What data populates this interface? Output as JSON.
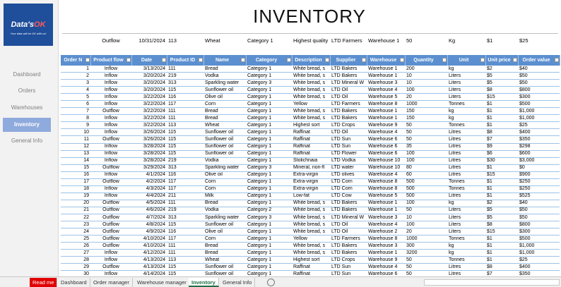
{
  "sidebar": {
    "logo": {
      "title": "Data's",
      "accent": "OK",
      "tagline": "Your data will be OK with us!"
    },
    "nav": [
      "Dashboard",
      "Orders",
      "Warehouses",
      "Inventory",
      "General Info"
    ],
    "selected": 3
  },
  "header": {
    "title": "INVENTORY"
  },
  "entry_row": [
    "Outflow",
    "10/31/2024",
    "113",
    "Wheat",
    "Category 1",
    "Highest quality",
    "LTD Farmers",
    "Warehouse 1",
    "50",
    "Kg",
    "$1",
    "$25"
  ],
  "table": {
    "columns": [
      "Order N",
      "Product flow",
      "Date",
      "Product ID",
      "Name",
      "Category",
      "Description",
      "Supplier",
      "Warehouse",
      "Quantity",
      "Unit",
      "Unit price",
      "Order value"
    ],
    "rows": [
      [
        "1",
        "Inflow",
        "3/13/2024",
        "111",
        "Bread",
        "Category 1",
        "White bread, s",
        "LTD Bakers",
        "Warehouse 1",
        "200",
        "kg",
        "$2",
        "$40"
      ],
      [
        "2",
        "Inflow",
        "3/20/2024",
        "219",
        "Vodka",
        "Category 1",
        "White bread, s",
        "LTD Bakers",
        "Warehouse 1",
        "10",
        "Liters",
        "$5",
        "$50"
      ],
      [
        "3",
        "Inflow",
        "3/20/2024",
        "313",
        "Sparkling water",
        "Category 3",
        "White bread, s",
        "LTD Mineral W",
        "Warehouse 3",
        "10",
        "Liters",
        "$5",
        "$50"
      ],
      [
        "4",
        "Inflow",
        "3/20/2024",
        "115",
        "Sunflower oil",
        "Category 1",
        "White bread, s",
        "LTD Oil",
        "Warehouse 4",
        "100",
        "Liters",
        "$8",
        "$800"
      ],
      [
        "5",
        "Inflow",
        "3/22/2024",
        "116",
        "Olive oil",
        "Category 1",
        "White bread, s",
        "LTD Oil",
        "Warehouse 5",
        "20",
        "Liters",
        "$15",
        "$300"
      ],
      [
        "6",
        "Inflow",
        "3/22/2024",
        "117",
        "Corn",
        "Category 1",
        "Yellow",
        "LTD Farmers",
        "Warehouse 8",
        "1000",
        "Tonnes",
        "$1",
        "$500"
      ],
      [
        "7",
        "Outflow",
        "3/22/2024",
        "111",
        "Bread",
        "Category 1",
        "White bread, s",
        "LTD Bakers",
        "Warehouse 1",
        "150",
        "kg",
        "$1",
        "$1,000"
      ],
      [
        "8",
        "Inflow",
        "3/22/2024",
        "111",
        "Bread",
        "Category 1",
        "White bread, s",
        "LTD Bakers",
        "Warehouse 1",
        "150",
        "kg",
        "$1",
        "$1,000"
      ],
      [
        "9",
        "Inflow",
        "3/22/2024",
        "113",
        "Wheat",
        "Category 1",
        "Highest sort",
        "LTD Crops",
        "Warehouse 9",
        "50",
        "Tonnes",
        "$1",
        "$25"
      ],
      [
        "10",
        "Inflow",
        "3/26/2024",
        "115",
        "Sunflower oil",
        "Category 1",
        "Raffinat",
        "LTD Oil",
        "Warehouse 4",
        "50",
        "Litres",
        "$8",
        "$400"
      ],
      [
        "11",
        "Outflow",
        "3/26/2024",
        "115",
        "Sunflower oil",
        "Category 1",
        "Raffinat",
        "LTD Sun",
        "Warehouse 6",
        "50",
        "Litres",
        "$7",
        "$350"
      ],
      [
        "12",
        "Inflow",
        "3/28/2024",
        "115",
        "Sunflower oil",
        "Category 1",
        "Raffinat",
        "LTD Sun",
        "Warehouse 6",
        "35",
        "Litres",
        "$9",
        "$298"
      ],
      [
        "13",
        "Inflow",
        "3/28/2024",
        "115",
        "Sunflower oil",
        "Category 1",
        "Raffinat",
        "LTD Flower",
        "Warehouse 6",
        "100",
        "Litres",
        "$6",
        "$600"
      ],
      [
        "14",
        "Inflow",
        "3/28/2024",
        "219",
        "Vodka",
        "Category 1",
        "Stolichnaia",
        "LTD Vodka",
        "Warehouse 10",
        "100",
        "Litres",
        "$30",
        "$3,000"
      ],
      [
        "15",
        "Outflow",
        "3/29/2024",
        "313",
        "Sparkling water",
        "Category 3",
        "Mineral, non-fl",
        "LTD water",
        "Warehouse 10",
        "80",
        "Litres",
        "$1",
        "$0"
      ],
      [
        "16",
        "Inflow",
        "4/1/2024",
        "116",
        "Olive oil",
        "Category 1",
        "Extra-virgin",
        "LTD olives",
        "Warehouse 4",
        "60",
        "Litres",
        "$15",
        "$900"
      ],
      [
        "17",
        "Outflow",
        "4/2/2024",
        "117",
        "Corn",
        "Category 1",
        "Extra-virgin",
        "LTD Corn",
        "Warehouse 8",
        "500",
        "Tonnes",
        "$1",
        "$250"
      ],
      [
        "18",
        "Inflow",
        "4/3/2024",
        "117",
        "Corn",
        "Category 1",
        "Extra-virgin",
        "LTD Corn",
        "Warehouse 8",
        "500",
        "Tonnes",
        "$1",
        "$250"
      ],
      [
        "19",
        "Inflow",
        "4/4/2024",
        "211",
        "Milk",
        "Category 1",
        "Low-fat",
        "LTD Cow",
        "Warehouse 5",
        "500",
        "Litres",
        "$1",
        "$525"
      ],
      [
        "20",
        "Outflow",
        "4/5/2024",
        "111",
        "Bread",
        "Category 1",
        "White bread, s",
        "LTD Bakers",
        "Warehouse 1",
        "100",
        "kg",
        "$2",
        "$40"
      ],
      [
        "21",
        "Outflow",
        "4/6/2024",
        "219",
        "Vodka",
        "Category 2",
        "White bread, s",
        "LTD Bakers",
        "Warehouse 1",
        "50",
        "Liters",
        "$5",
        "$50"
      ],
      [
        "22",
        "Outflow",
        "4/7/2024",
        "313",
        "Sparkling water",
        "Category 3",
        "White bread, s",
        "LTD Mineral W",
        "Warehouse 3",
        "10",
        "Liters",
        "$5",
        "$50"
      ],
      [
        "23",
        "Outflow",
        "4/8/2024",
        "115",
        "Sunflower oil",
        "Category 1",
        "White bread, s",
        "LTD Oil",
        "Warehouse 4",
        "100",
        "Liters",
        "$8",
        "$800"
      ],
      [
        "24",
        "Outflow",
        "4/9/2024",
        "116",
        "Olive oil",
        "Category 1",
        "White bread, s",
        "LTD Oil",
        "Warehouse 2",
        "20",
        "Liters",
        "$15",
        "$300"
      ],
      [
        "25",
        "Outflow",
        "4/10/2024",
        "117",
        "Corn",
        "Category 1",
        "Yellow",
        "LTD Farmers",
        "Warehouse 8",
        "1000",
        "Tonnes",
        "$1",
        "$500"
      ],
      [
        "26",
        "Outflow",
        "4/10/2024",
        "111",
        "Bread",
        "Category 1",
        "White bread, s",
        "LTD Bakers",
        "Warehouse 3",
        "300",
        "kg",
        "$1",
        "$1,000"
      ],
      [
        "27",
        "Inflow",
        "4/12/2024",
        "111",
        "Bread",
        "Category 1",
        "White bread, s",
        "LTD Bakers",
        "Warehouse 1",
        "3200",
        "kg",
        "$1",
        "$1,000"
      ],
      [
        "28",
        "Inflow",
        "4/13/2024",
        "113",
        "Wheat",
        "Category 1",
        "Highest sort",
        "LTD Crops",
        "Warehouse 9",
        "50",
        "Tonnes",
        "$1",
        "$25"
      ],
      [
        "29",
        "Outflow",
        "4/13/2024",
        "115",
        "Sunflower oil",
        "Category 1",
        "Raffinat",
        "LTD Sun",
        "Warehouse 4",
        "50",
        "Litres",
        "$8",
        "$400"
      ],
      [
        "30",
        "Inflow",
        "4/14/2024",
        "115",
        "Sunflower oil",
        "Category 1",
        "Raffinat",
        "LTD Sun",
        "Warehouse 6",
        "50",
        "Litres",
        "$7",
        "$350"
      ]
    ]
  },
  "tabs": [
    "Read me",
    "Dashboard",
    "Order manager",
    "Warehouse manager",
    "Inventory",
    "General Info"
  ],
  "active_tab": 4
}
